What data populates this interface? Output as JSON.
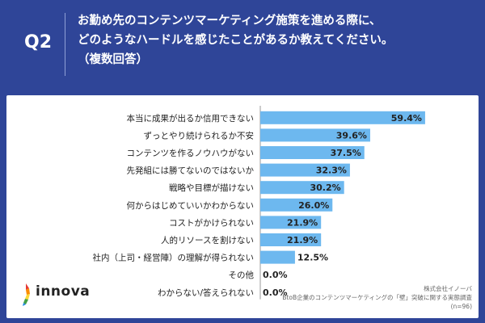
{
  "header": {
    "q_label": "Q2",
    "question_lines": [
      "お勤め先のコンテンツマーケティング施策を進める際に、",
      "どのようなハードルを感じたことがあるか教えてください。",
      "（複数回答）"
    ]
  },
  "logo": {
    "text": "innova"
  },
  "source": {
    "line1": "株式会社イノーバ",
    "line2": "BtoB企業のコンテンツマーケティングの「壁」突破に関する実態調査",
    "line3": "(n=96)"
  },
  "colors": {
    "bar": "#6db8ef",
    "background": "#2f4598",
    "card": "#ffffff"
  },
  "chart_data": {
    "type": "bar",
    "orientation": "horizontal",
    "categories": [
      "本当に成果が出るか信用できない",
      "ずっとやり続けられるか不安",
      "コンテンツを作るノウハウがない",
      "先発組には勝てないのではないか",
      "戦略や目標が描けない",
      "何からはじめていいかわからない",
      "コストがかけられない",
      "人的リソースを割けない",
      "社内（上司・経営陣）の理解が得られない",
      "その他",
      "わからない/答えられない"
    ],
    "values": [
      59.4,
      39.6,
      37.5,
      32.3,
      30.2,
      26.0,
      21.9,
      21.9,
      12.5,
      0.0,
      0.0
    ],
    "value_labels": [
      "59.4%",
      "39.6%",
      "37.5%",
      "32.3%",
      "30.2%",
      "26.0%",
      "21.9%",
      "21.9%",
      "12.5%",
      "0.0%",
      "0.0%"
    ],
    "xlim": [
      0,
      60
    ],
    "unit": "%"
  }
}
